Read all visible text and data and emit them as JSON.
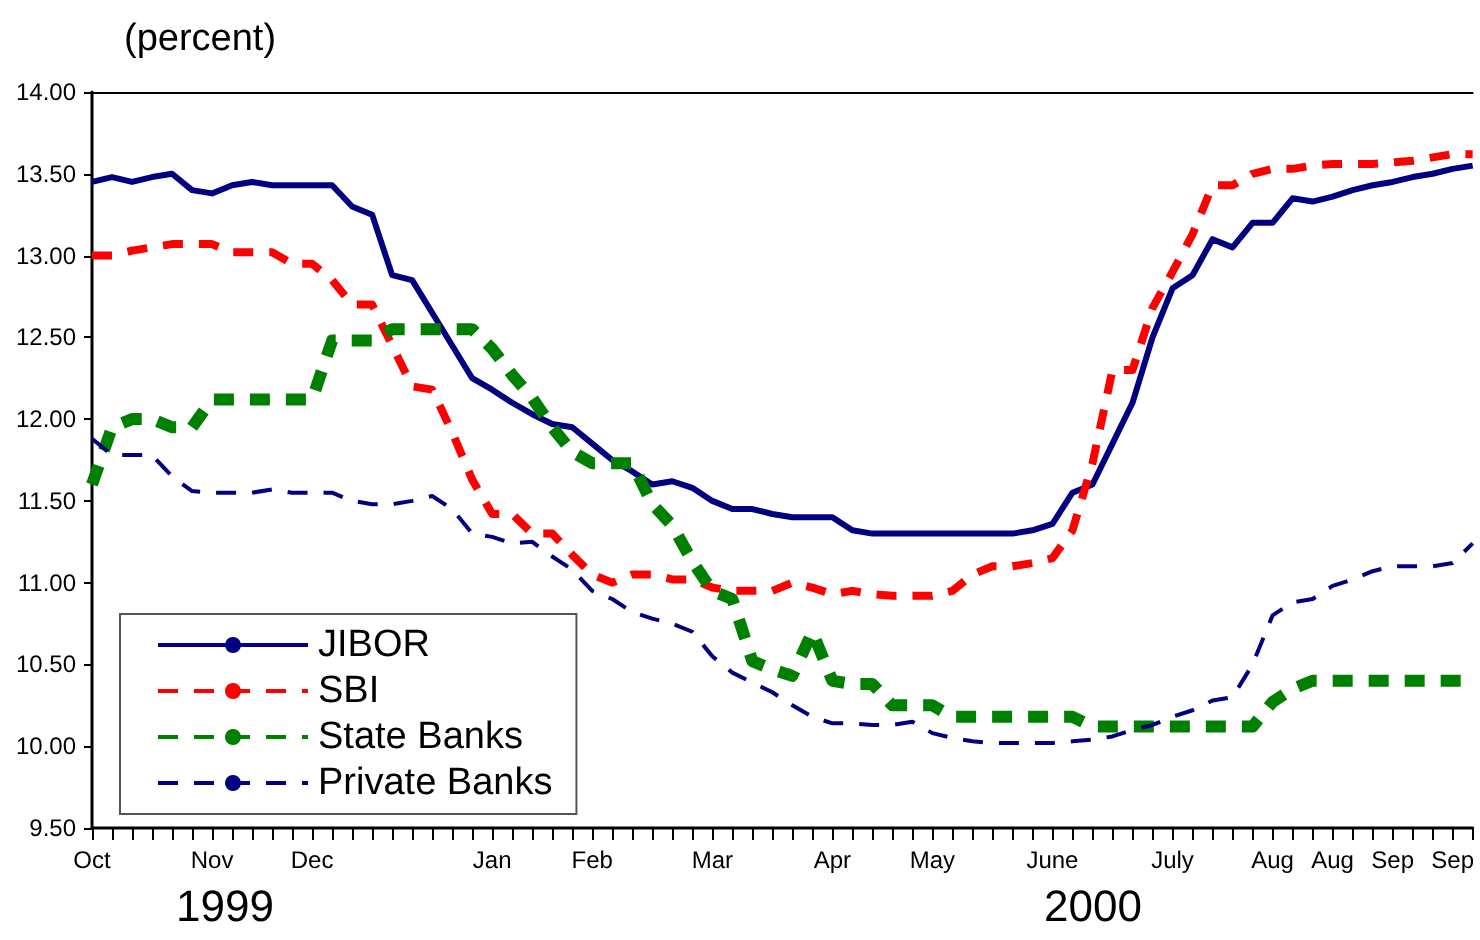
{
  "chart_data": {
    "type": "line",
    "ylabel": "(percent)",
    "categories": [
      "Oct",
      null,
      null,
      null,
      null,
      null,
      "Nov",
      null,
      null,
      null,
      null,
      "Dec",
      null,
      null,
      null,
      null,
      null,
      null,
      null,
      null,
      "Jan",
      null,
      null,
      null,
      null,
      "Feb",
      null,
      null,
      null,
      null,
      null,
      "Mar",
      null,
      null,
      null,
      null,
      null,
      "Apr",
      null,
      null,
      null,
      null,
      "May",
      null,
      null,
      null,
      null,
      null,
      "June",
      null,
      null,
      null,
      null,
      null,
      "July",
      null,
      null,
      null,
      null,
      "Aug",
      null,
      null,
      "Aug",
      null,
      null,
      "Sep",
      null,
      null,
      "Sep",
      null
    ],
    "series": [
      {
        "name": "JIBOR",
        "color": "#000080",
        "line_style": "solid",
        "values": [
          13.45,
          13.48,
          13.45,
          13.48,
          13.5,
          13.4,
          13.38,
          13.43,
          13.45,
          13.43,
          13.43,
          13.43,
          13.43,
          13.3,
          13.25,
          12.88,
          12.85,
          12.65,
          12.45,
          12.25,
          12.18,
          12.1,
          12.03,
          11.97,
          11.95,
          11.85,
          11.75,
          11.68,
          11.6,
          11.62,
          11.58,
          11.5,
          11.45,
          11.45,
          11.42,
          11.4,
          11.4,
          11.4,
          11.32,
          11.3,
          11.3,
          11.3,
          11.3,
          11.3,
          11.3,
          11.3,
          11.3,
          11.32,
          11.36,
          11.55,
          11.6,
          11.85,
          12.1,
          12.5,
          12.8,
          12.88,
          13.1,
          13.05,
          13.2,
          13.2,
          13.35,
          13.33,
          13.36,
          13.4,
          13.43,
          13.45,
          13.48,
          13.5,
          13.53,
          13.55
        ]
      },
      {
        "name": "SBI",
        "color": "#ff0000",
        "line_style": "dashed",
        "values": [
          13.0,
          13.0,
          13.03,
          13.05,
          13.07,
          13.07,
          13.07,
          13.02,
          13.02,
          13.02,
          12.95,
          12.95,
          12.85,
          12.7,
          12.7,
          12.45,
          12.2,
          12.18,
          11.92,
          11.63,
          11.42,
          11.42,
          11.3,
          11.3,
          11.17,
          11.05,
          11.0,
          11.05,
          11.05,
          11.02,
          11.02,
          10.97,
          10.95,
          10.95,
          10.95,
          11.0,
          10.97,
          10.93,
          10.95,
          10.93,
          10.92,
          10.92,
          10.92,
          10.95,
          11.05,
          11.1,
          11.1,
          11.12,
          11.15,
          11.32,
          11.73,
          12.3,
          12.3,
          12.68,
          12.9,
          13.13,
          13.43,
          13.43,
          13.5,
          13.53,
          13.53,
          13.55,
          13.56,
          13.56,
          13.56,
          13.57,
          13.58,
          13.6,
          13.62,
          13.62
        ]
      },
      {
        "name": "State Banks",
        "color": "#008000",
        "line_style": "dashed",
        "values": [
          11.6,
          11.95,
          12.0,
          12.0,
          11.95,
          11.95,
          12.12,
          12.12,
          12.12,
          12.12,
          12.12,
          12.12,
          12.48,
          12.48,
          12.48,
          12.55,
          12.55,
          12.55,
          12.55,
          12.55,
          12.43,
          12.27,
          12.13,
          11.95,
          11.8,
          11.73,
          11.73,
          11.73,
          11.48,
          11.35,
          11.13,
          10.95,
          10.9,
          10.52,
          10.47,
          10.43,
          10.7,
          10.4,
          10.38,
          10.38,
          10.25,
          10.25,
          10.25,
          10.18,
          10.18,
          10.18,
          10.18,
          10.18,
          10.18,
          10.18,
          10.12,
          10.12,
          10.12,
          10.12,
          10.12,
          10.12,
          10.12,
          10.12,
          10.12,
          10.27,
          10.35,
          10.4,
          10.4,
          10.4,
          10.4,
          10.4,
          10.4,
          10.4,
          10.4,
          10.4
        ]
      },
      {
        "name": "Private Banks",
        "color": "#000080",
        "line_style": "dashed",
        "values": [
          11.88,
          11.78,
          11.78,
          11.78,
          11.65,
          11.56,
          11.55,
          11.55,
          11.55,
          11.57,
          11.55,
          11.55,
          11.55,
          11.5,
          11.48,
          11.48,
          11.5,
          11.53,
          11.45,
          11.3,
          11.28,
          11.24,
          11.25,
          11.16,
          11.08,
          10.95,
          10.9,
          10.82,
          10.78,
          10.75,
          10.7,
          10.55,
          10.45,
          10.39,
          10.33,
          10.25,
          10.18,
          10.14,
          10.14,
          10.13,
          10.13,
          10.15,
          10.08,
          10.05,
          10.03,
          10.02,
          10.02,
          10.02,
          10.02,
          10.03,
          10.04,
          10.06,
          10.1,
          10.13,
          10.18,
          10.22,
          10.28,
          10.3,
          10.5,
          10.8,
          10.88,
          10.9,
          10.98,
          11.02,
          11.07,
          11.1,
          11.1,
          11.1,
          11.12,
          11.24
        ]
      }
    ],
    "ylim": [
      9.5,
      14.0
    ],
    "yticks": [
      {
        "value": 9.5,
        "label": "9.50"
      },
      {
        "value": 10,
        "label": "10.00"
      },
      {
        "value": 10.5,
        "label": "10.50"
      },
      {
        "value": 11,
        "label": "11.00"
      },
      {
        "value": 11.5,
        "label": "11.50"
      },
      {
        "value": 12,
        "label": "12.00"
      },
      {
        "value": 12.5,
        "label": "12.50"
      },
      {
        "value": 13,
        "label": "13.00"
      },
      {
        "value": 13.5,
        "label": "13.50"
      },
      {
        "value": 14,
        "label": "14.00"
      }
    ],
    "grid": false,
    "legend": "bottom left",
    "marker": "none",
    "annotations": [
      "1999",
      "2000"
    ]
  }
}
